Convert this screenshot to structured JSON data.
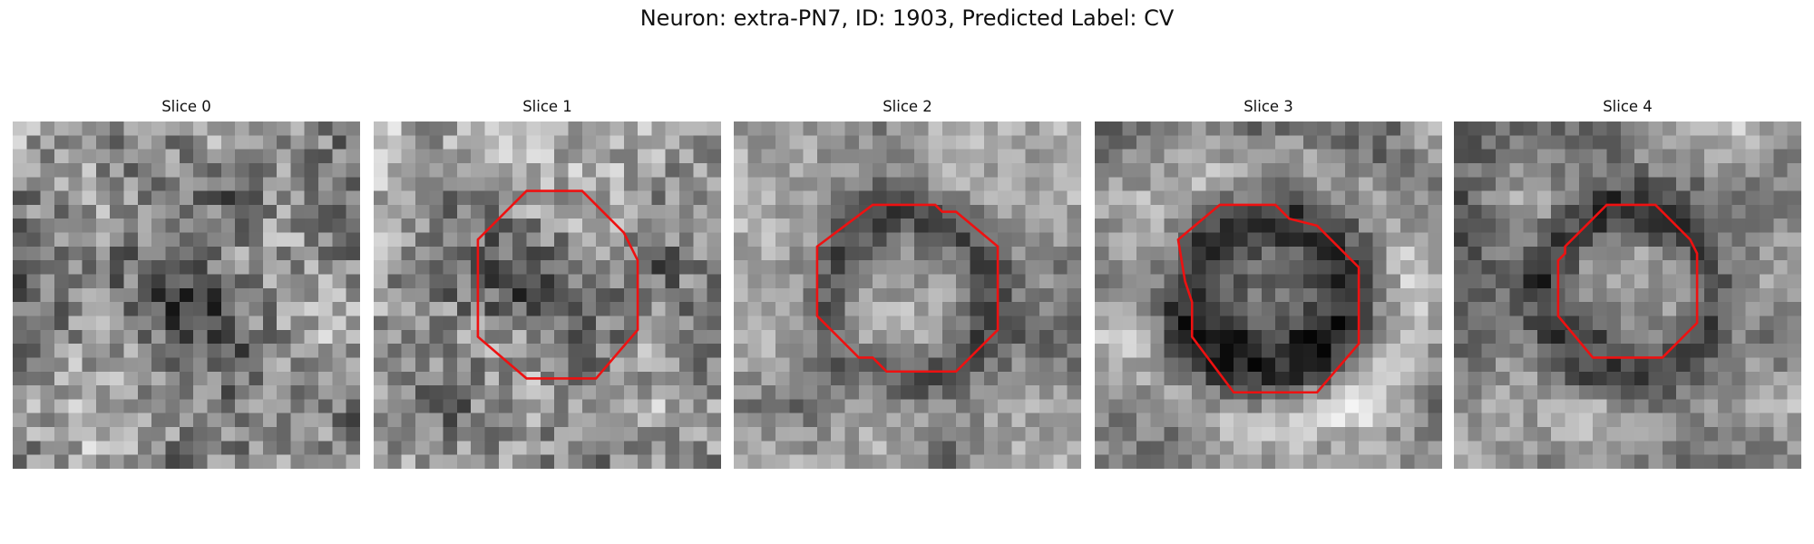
{
  "figure": {
    "title": "Neuron: extra-PN7, ID: 1903, Predicted Label: CV",
    "outline_color": "#ee1111"
  },
  "slices": [
    {
      "label": "Slice 0",
      "has_outline": false,
      "seed": 11,
      "pattern": "blob",
      "outline": []
    },
    {
      "label": "Slice 1",
      "has_outline": true,
      "seed": 23,
      "pattern": "blob",
      "outline": [
        [
          11,
          5
        ],
        [
          15,
          5
        ],
        [
          18,
          8
        ],
        [
          19,
          10
        ],
        [
          19,
          15
        ],
        [
          16,
          18.5
        ],
        [
          11,
          18.5
        ],
        [
          7.5,
          15.5
        ],
        [
          7.5,
          8.5
        ]
      ]
    },
    {
      "label": "Slice 2",
      "has_outline": true,
      "seed": 37,
      "pattern": "ring",
      "outline": [
        [
          10,
          6
        ],
        [
          14.5,
          6
        ],
        [
          15,
          6.5
        ],
        [
          16,
          6.5
        ],
        [
          19,
          9
        ],
        [
          19,
          15
        ],
        [
          16,
          18
        ],
        [
          11,
          18
        ],
        [
          10,
          17
        ],
        [
          9,
          17
        ],
        [
          6,
          14
        ],
        [
          6,
          9
        ]
      ]
    },
    {
      "label": "Slice 3",
      "has_outline": true,
      "seed": 53,
      "pattern": "ring_thick",
      "outline": [
        [
          9,
          6
        ],
        [
          13,
          6
        ],
        [
          14,
          7
        ],
        [
          16,
          7.5
        ],
        [
          19,
          10.5
        ],
        [
          19,
          16
        ],
        [
          16,
          19.5
        ],
        [
          10,
          19.5
        ],
        [
          7,
          15.5
        ],
        [
          7,
          13
        ],
        [
          6.5,
          11.5
        ],
        [
          6,
          8.5
        ]
      ]
    },
    {
      "label": "Slice 4",
      "has_outline": true,
      "seed": 71,
      "pattern": "ring",
      "outline": [
        [
          11,
          6
        ],
        [
          14.5,
          6
        ],
        [
          17,
          8.5
        ],
        [
          17.5,
          9.5
        ],
        [
          17.5,
          14.5
        ],
        [
          15,
          17
        ],
        [
          10,
          17
        ],
        [
          7.5,
          14
        ],
        [
          7.5,
          10
        ],
        [
          8,
          9.5
        ],
        [
          8,
          9
        ]
      ]
    }
  ]
}
